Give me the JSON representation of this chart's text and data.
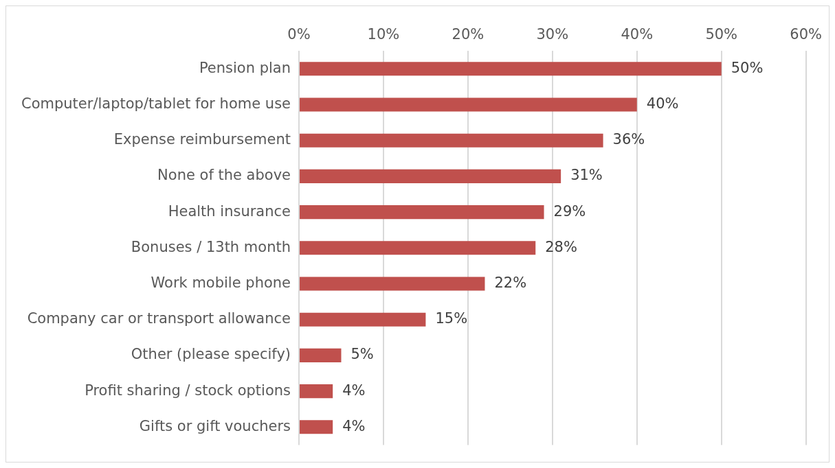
{
  "chart_data": {
    "type": "bar",
    "orientation": "horizontal",
    "categories": [
      "Pension plan",
      "Computer/laptop/tablet for home use",
      "Expense reimbursement",
      "None of the above",
      "Health insurance",
      "Bonuses / 13th month",
      "Work mobile phone",
      "Company car or transport allowance",
      "Other (please specify)",
      "Profit sharing / stock options",
      "Gifts or gift vouchers"
    ],
    "values": [
      50,
      40,
      36,
      31,
      29,
      28,
      22,
      15,
      5,
      4,
      4
    ],
    "value_labels": [
      "50%",
      "40%",
      "36%",
      "31%",
      "29%",
      "28%",
      "22%",
      "15%",
      "5%",
      "4%",
      "4%"
    ],
    "color": "#c0504d",
    "xlim": [
      0,
      60
    ],
    "xticks": [
      {
        "value": 0,
        "label": "0%"
      },
      {
        "value": 10,
        "label": "10%"
      },
      {
        "value": 20,
        "label": "20%"
      },
      {
        "value": 30,
        "label": "30%"
      },
      {
        "value": 40,
        "label": "40%"
      },
      {
        "value": 50,
        "label": "50%"
      },
      {
        "value": 60,
        "label": "60%"
      }
    ],
    "grid": "x",
    "legend": false
  }
}
